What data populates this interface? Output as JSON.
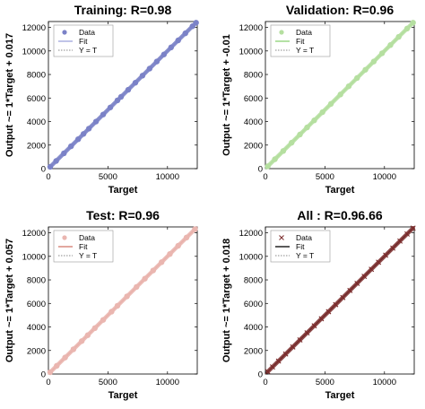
{
  "chart_data": [
    {
      "type": "scatter",
      "title": "Training: R=0.98",
      "xlabel": "Target",
      "ylabel": "Output ~= 1*Target + 0.017",
      "xlim": [
        0,
        12500
      ],
      "ylim": [
        0,
        12500
      ],
      "xticks": [
        "0",
        "5000",
        "10000"
      ],
      "yticks": [
        "0",
        "2000",
        "4000",
        "6000",
        "8000",
        "10000",
        "12000"
      ],
      "legend": [
        "Data",
        "Fit",
        "Y = T"
      ],
      "legend_position": "top-left",
      "data_color": "#7b82c7",
      "fit_color": "#aab0e0",
      "fit": {
        "slope": 1,
        "intercept": 0.017
      },
      "x": [
        150,
        650,
        1300,
        1900,
        2500,
        2950,
        3400,
        4000,
        4600,
        5200,
        5800,
        6100,
        6700,
        7300,
        7900,
        8500,
        9100,
        9700,
        10300,
        10900,
        11500,
        12100,
        12400
      ],
      "y": [
        150,
        650,
        1300,
        1900,
        2500,
        2950,
        3400,
        4000,
        4600,
        5200,
        5800,
        6100,
        6700,
        7300,
        7900,
        8500,
        9100,
        9700,
        10300,
        10900,
        11500,
        12100,
        12400
      ]
    },
    {
      "type": "scatter",
      "title": "Validation: R=0.96",
      "xlabel": "Target",
      "ylabel": "Output ~= 1*Target + -0.01",
      "xlim": [
        0,
        12500
      ],
      "ylim": [
        0,
        12500
      ],
      "xticks": [
        "0",
        "5000",
        "10000"
      ],
      "yticks": [
        "0",
        "2000",
        "4000",
        "6000",
        "8000",
        "10000",
        "12000"
      ],
      "legend": [
        "Data",
        "Fit",
        "Y = T"
      ],
      "legend_position": "top-left",
      "data_color": "#b5dfa0",
      "fit_color": "#9ad786",
      "fit": {
        "slope": 1,
        "intercept": -0.01
      },
      "x": [
        200,
        800,
        1500,
        2200,
        2900,
        3500,
        4100,
        4800,
        5500,
        6300,
        7000,
        7700,
        8400,
        9100,
        9800,
        10500,
        11200,
        11900,
        12400
      ],
      "y": [
        200,
        800,
        1500,
        2200,
        2900,
        3500,
        4100,
        4800,
        5500,
        6300,
        7000,
        7700,
        8400,
        9100,
        9800,
        10500,
        11200,
        11900,
        12400
      ]
    },
    {
      "type": "scatter",
      "title": "Test: R=0.96",
      "xlabel": "Target",
      "ylabel": "Output ~= 1*Target + 0.057",
      "xlim": [
        0,
        12500
      ],
      "ylim": [
        0,
        12500
      ],
      "xticks": [
        "0",
        "5000",
        "10000"
      ],
      "yticks": [
        "0",
        "2000",
        "4000",
        "6000",
        "8000",
        "10000",
        "12000"
      ],
      "legend": [
        "Data",
        "Fit",
        "Y = T"
      ],
      "legend_position": "top-left",
      "data_color": "#eab6b0",
      "fit_color": "#d98a80",
      "fit": {
        "slope": 1,
        "intercept": 0.057
      },
      "x": [
        150,
        700,
        1400,
        2100,
        2800,
        3300,
        3900,
        4600,
        5300,
        5800,
        6600,
        7400,
        8100,
        8800,
        9500,
        10200,
        10900,
        11600,
        12300
      ],
      "y": [
        150,
        700,
        1400,
        2100,
        2800,
        3300,
        3900,
        4600,
        5300,
        5800,
        6600,
        7400,
        8100,
        8800,
        9500,
        10200,
        10900,
        11600,
        12300
      ]
    },
    {
      "type": "scatter",
      "title": "All : R=0.96.66",
      "xlabel": "Target",
      "ylabel": "Output ~= 1*Target + 0.018",
      "xlim": [
        0,
        12500
      ],
      "ylim": [
        0,
        12500
      ],
      "xticks": [
        "0",
        "5000",
        "10000"
      ],
      "yticks": [
        "0",
        "2000",
        "4000",
        "6000",
        "8000",
        "10000",
        "12000"
      ],
      "legend": [
        "Data",
        "Fit",
        "Y = T"
      ],
      "legend_position": "top-left",
      "data_color": "#7a2a2a",
      "fit_color": "#222222",
      "fit": {
        "slope": 1,
        "intercept": 0.018
      },
      "x": [
        200,
        600,
        1100,
        1700,
        2300,
        2900,
        3500,
        4100,
        4700,
        5300,
        5900,
        6500,
        7100,
        7700,
        8300,
        8900,
        9500,
        10100,
        10700,
        11300,
        11900,
        12400
      ],
      "y": [
        200,
        600,
        1100,
        1700,
        2300,
        2900,
        3500,
        4100,
        4700,
        5300,
        5900,
        6500,
        7100,
        7700,
        8300,
        8900,
        9500,
        10100,
        10700,
        11300,
        11900,
        12400
      ]
    }
  ]
}
